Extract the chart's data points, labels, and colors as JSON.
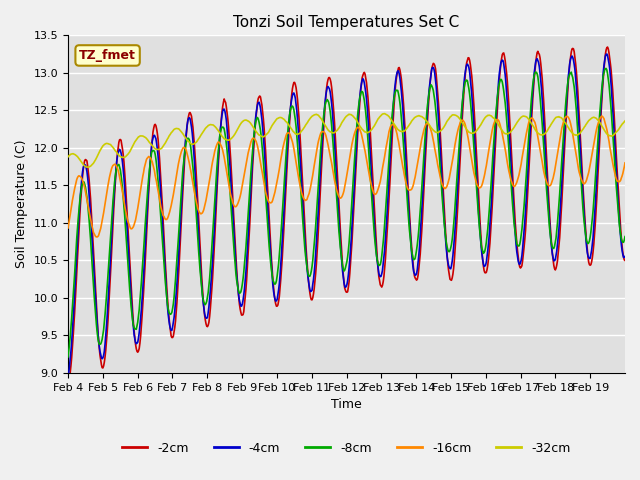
{
  "title": "Tonzi Soil Temperatures Set C",
  "xlabel": "Time",
  "ylabel": "Soil Temperature (C)",
  "ylim": [
    9.0,
    13.5
  ],
  "annotation": "TZ_fmet",
  "annotation_color": "#8B0000",
  "annotation_bg": "#FFFFCC",
  "series_colors": {
    "-2cm": "#CC0000",
    "-4cm": "#0000CC",
    "-8cm": "#00AA00",
    "-16cm": "#FF8800",
    "-32cm": "#CCCC00"
  },
  "tick_labels": [
    "Feb 4",
    "Feb 5",
    "Feb 6",
    "Feb 7",
    "Feb 8",
    "Feb 9",
    "Feb 10",
    "Feb 11",
    "Feb 12",
    "Feb 13",
    "Feb 14",
    "Feb 15",
    "Feb 16",
    "Feb 17",
    "Feb 18",
    "Feb 19"
  ],
  "grid_color": "#FFFFFF",
  "linewidth": 1.2
}
